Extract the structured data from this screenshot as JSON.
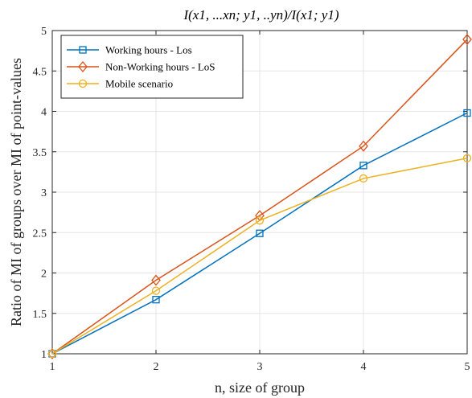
{
  "chart_data": {
    "type": "line",
    "title": "I(x1, ...xn; y1, ..yn)/I(x1; y1)",
    "xlabel": "n, size of group",
    "ylabel": "Ratio of MI of groups over MI of point-values",
    "x": [
      1,
      2,
      3,
      4,
      5
    ],
    "xlim": [
      1,
      5
    ],
    "ylim": [
      1,
      5
    ],
    "xticks": [
      "1",
      "2",
      "3",
      "4",
      "5"
    ],
    "yticks": [
      "1",
      "1.5",
      "2",
      "2.5",
      "3",
      "3.5",
      "4",
      "4.5",
      "5"
    ],
    "grid": true,
    "legend_position": "top-left",
    "series": [
      {
        "name": "Working hours - Los",
        "marker": "square",
        "color": "#0072BD",
        "values": [
          1.0,
          1.67,
          2.49,
          3.33,
          3.98
        ]
      },
      {
        "name": "Non-Working hours - LoS",
        "marker": "diamond",
        "color": "#D95319",
        "values": [
          1.0,
          1.91,
          2.71,
          3.57,
          4.89
        ]
      },
      {
        "name": "Mobile scenario",
        "marker": "circle",
        "color": "#EDB120",
        "values": [
          1.0,
          1.78,
          2.65,
          3.17,
          3.42
        ]
      }
    ]
  }
}
